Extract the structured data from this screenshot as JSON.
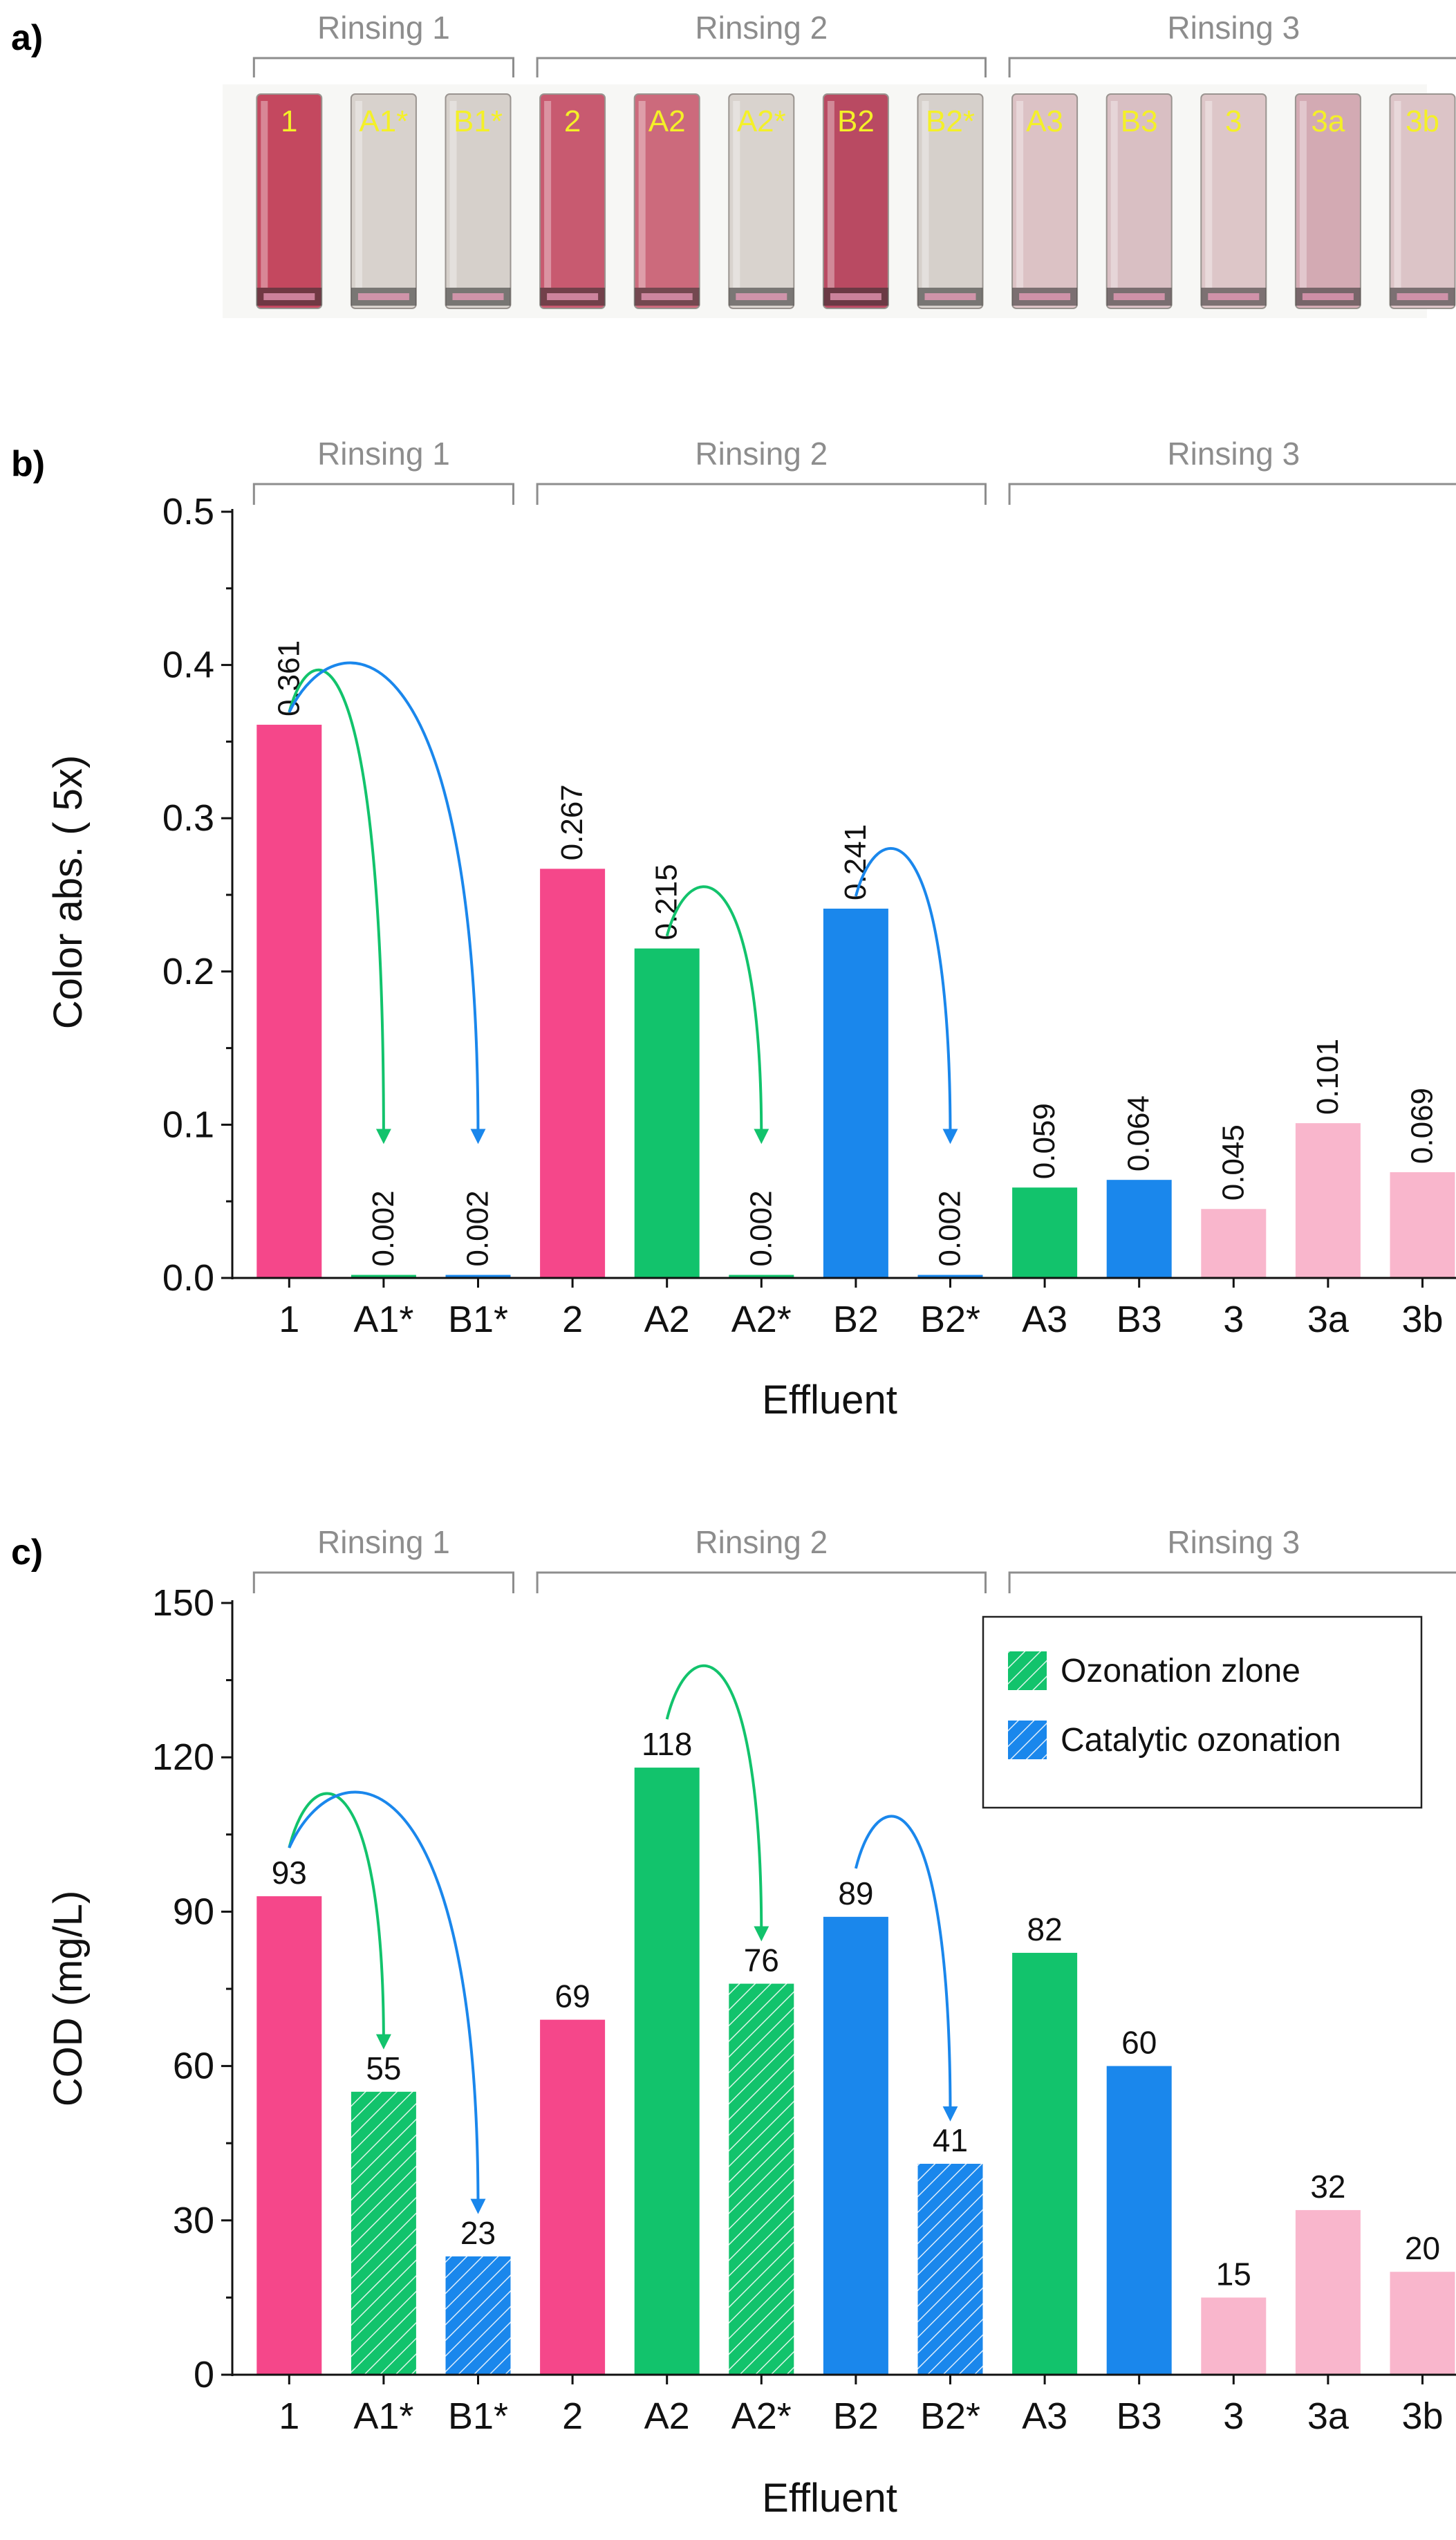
{
  "categories": [
    "1",
    "A1*",
    "B1*",
    "2",
    "A2",
    "A2*",
    "B2",
    "B2*",
    "A3",
    "B3",
    "3",
    "3a",
    "3b"
  ],
  "groups": [
    {
      "label": "Rinsing 1",
      "from": 0,
      "to": 2
    },
    {
      "label": "Rinsing 2",
      "from": 3,
      "to": 7
    },
    {
      "label": "Rinsing 3",
      "from": 8,
      "to": 12
    }
  ],
  "colors": {
    "pink": "#f5478a",
    "green": "#12c36c",
    "blue": "#1a87ec",
    "lightpink": "#f9b6cc",
    "group_gray": "#8d8d8d",
    "vial_label": "#f4f028"
  },
  "panel_a": {
    "label": "a)",
    "vials": [
      {
        "label": "1",
        "tint": "#c4485f"
      },
      {
        "label": "A1*",
        "tint": "#d8d2cd"
      },
      {
        "label": "B1*",
        "tint": "#d6d0cb"
      },
      {
        "label": "2",
        "tint": "#c85a70"
      },
      {
        "label": "A2",
        "tint": "#cc6a7c"
      },
      {
        "label": "A2*",
        "tint": "#d9d3ce"
      },
      {
        "label": "B2",
        "tint": "#b94a62"
      },
      {
        "label": "B2*",
        "tint": "#d6d0cb"
      },
      {
        "label": "A3",
        "tint": "#dcc2c5"
      },
      {
        "label": "B3",
        "tint": "#d9bfc3"
      },
      {
        "label": "3",
        "tint": "#ddc6c8"
      },
      {
        "label": "3a",
        "tint": "#d3aab3"
      },
      {
        "label": "3b",
        "tint": "#dcc4c7"
      }
    ]
  },
  "chart_data": [
    {
      "panel": "b)",
      "type": "bar",
      "categories": [
        "1",
        "A1*",
        "B1*",
        "2",
        "A2",
        "A2*",
        "B2",
        "B2*",
        "A3",
        "B3",
        "3",
        "3a",
        "3b"
      ],
      "values": [
        0.361,
        0.002,
        0.002,
        0.267,
        0.215,
        0.002,
        0.241,
        0.002,
        0.059,
        0.064,
        0.045,
        0.101,
        0.069
      ],
      "value_labels": [
        "0.361",
        "0.002",
        "0.002",
        "0.267",
        "0.215",
        "0.002",
        "0.241",
        "0.002",
        "0.059",
        "0.064",
        "0.045",
        "0.101",
        "0.069"
      ],
      "bar_colors": [
        "pink",
        "green",
        "blue",
        "pink",
        "green",
        "green",
        "blue",
        "blue",
        "green",
        "blue",
        "lightpink",
        "lightpink",
        "lightpink"
      ],
      "hatched": [
        false,
        false,
        false,
        false,
        false,
        false,
        false,
        false,
        false,
        false,
        false,
        false,
        false
      ],
      "xlabel": "Effluent",
      "ylabel": "Color abs. ( 5x)",
      "ylim": [
        0,
        0.5
      ],
      "yticks": [
        0.0,
        0.1,
        0.2,
        0.3,
        0.4,
        0.5
      ],
      "ytick_labels": [
        "0.0",
        "0.1",
        "0.2",
        "0.3",
        "0.4",
        "0.5"
      ],
      "label_rotation": "vertical",
      "arrows": [
        {
          "from": 0,
          "to": 1,
          "color": "green"
        },
        {
          "from": 0,
          "to": 2,
          "color": "blue"
        },
        {
          "from": 4,
          "to": 5,
          "color": "green"
        },
        {
          "from": 6,
          "to": 7,
          "color": "blue"
        }
      ]
    },
    {
      "panel": "c)",
      "type": "bar",
      "categories": [
        "1",
        "A1*",
        "B1*",
        "2",
        "A2",
        "A2*",
        "B2",
        "B2*",
        "A3",
        "B3",
        "3",
        "3a",
        "3b"
      ],
      "values": [
        93,
        55,
        23,
        69,
        118,
        76,
        89,
        41,
        82,
        60,
        15,
        32,
        20
      ],
      "value_labels": [
        "93",
        "55",
        "23",
        "69",
        "118",
        "76",
        "89",
        "41",
        "82",
        "60",
        "15",
        "32",
        "20"
      ],
      "bar_colors": [
        "pink",
        "green",
        "blue",
        "pink",
        "green",
        "green",
        "blue",
        "blue",
        "green",
        "blue",
        "lightpink",
        "lightpink",
        "lightpink"
      ],
      "hatched": [
        false,
        true,
        true,
        false,
        false,
        true,
        false,
        true,
        false,
        false,
        false,
        false,
        false
      ],
      "xlabel": "Effluent",
      "ylabel": "COD (mg/L)",
      "ylim": [
        0,
        150
      ],
      "yticks": [
        0,
        30,
        60,
        90,
        120,
        150
      ],
      "ytick_labels": [
        "0",
        "30",
        "60",
        "90",
        "120",
        "150"
      ],
      "label_rotation": "horizontal",
      "legend": {
        "position": "top-right",
        "entries": [
          {
            "label": "Ozonation zlone",
            "color": "green",
            "hatched": true
          },
          {
            "label": "Catalytic ozonation",
            "color": "blue",
            "hatched": true
          }
        ]
      },
      "arrows": [
        {
          "from": 0,
          "to": 1,
          "color": "green"
        },
        {
          "from": 0,
          "to": 2,
          "color": "blue"
        },
        {
          "from": 4,
          "to": 5,
          "color": "green"
        },
        {
          "from": 6,
          "to": 7,
          "color": "blue"
        }
      ]
    }
  ]
}
